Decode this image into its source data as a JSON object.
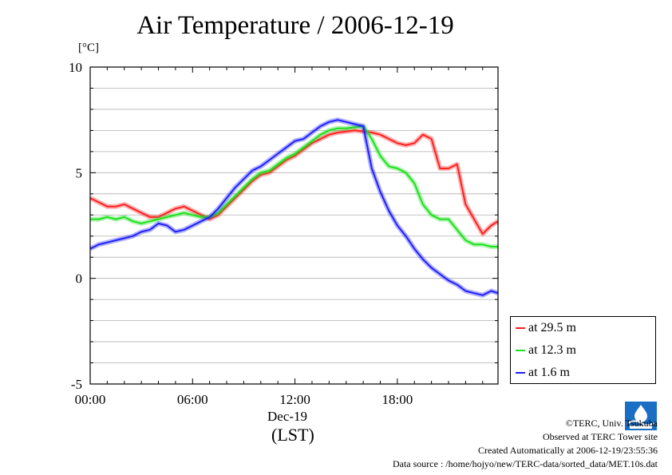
{
  "title": "Air Temperature / 2006-12-19",
  "unit_label": "[°C]",
  "date_label": "Dec-19",
  "lst_label": "(LST)",
  "legend": [
    {
      "label": "at 29.5 m",
      "color": "#ff2020"
    },
    {
      "label": "at 12.3 m",
      "color": "#20e020"
    },
    {
      "label": "at 1.6 m",
      "color": "#2020ff"
    }
  ],
  "credits": {
    "line1": "©TERC, Univ. Tsukuba",
    "line2": "Observed at TERC Tower site",
    "line3": "Created Automatically at 2006-12-19/23:55:36",
    "line4": "Data source : /home/hojyo/new/TERC-data/sorted_data/MET.10s.dat"
  },
  "logo_icon": "terc-logo-icon",
  "chart_data": {
    "type": "line",
    "title": "Air Temperature / 2006-12-19",
    "xlabel": "(LST)",
    "ylabel": "[°C]",
    "x_ticks": [
      "00:00",
      "06:00",
      "12:00",
      "18:00"
    ],
    "x_tick_values": [
      0,
      6,
      12,
      18
    ],
    "y_ticks": [
      "10",
      "5",
      "0",
      "-5"
    ],
    "y_tick_values": [
      10,
      5,
      0,
      -5
    ],
    "xlim": [
      0,
      23.9
    ],
    "ylim": [
      -5,
      10
    ],
    "grid": true,
    "legend_position": "bottom-right, outside",
    "x": [
      0,
      0.5,
      1,
      1.5,
      2,
      2.5,
      3,
      3.5,
      4,
      4.5,
      5,
      5.5,
      6,
      6.5,
      7,
      7.5,
      8,
      8.5,
      9,
      9.5,
      10,
      10.5,
      11,
      11.5,
      12,
      12.5,
      13,
      13.5,
      14,
      14.5,
      15,
      15.5,
      16,
      16.5,
      17,
      17.5,
      18,
      18.5,
      19,
      19.5,
      20,
      20.5,
      21,
      21.5,
      22,
      22.5,
      23,
      23.5,
      23.9
    ],
    "series": [
      {
        "name": "at 29.5 m",
        "color": "#ff2020",
        "values": [
          3.8,
          3.6,
          3.4,
          3.4,
          3.5,
          3.3,
          3.1,
          2.9,
          2.9,
          3.1,
          3.3,
          3.4,
          3.2,
          3.0,
          2.8,
          3.0,
          3.4,
          3.8,
          4.2,
          4.6,
          4.9,
          5.0,
          5.3,
          5.6,
          5.8,
          6.1,
          6.4,
          6.6,
          6.8,
          6.9,
          6.95,
          7.0,
          6.95,
          6.9,
          6.8,
          6.6,
          6.4,
          6.3,
          6.4,
          6.8,
          6.6,
          5.2,
          5.2,
          5.4,
          3.5,
          2.8,
          2.1,
          2.5,
          2.7
        ]
      },
      {
        "name": "at 12.3 m",
        "color": "#20e020",
        "values": [
          2.8,
          2.8,
          2.9,
          2.8,
          2.9,
          2.7,
          2.6,
          2.7,
          2.8,
          2.9,
          3.0,
          3.1,
          3.0,
          2.9,
          2.9,
          3.1,
          3.5,
          3.9,
          4.3,
          4.7,
          5.0,
          5.1,
          5.4,
          5.7,
          5.9,
          6.2,
          6.5,
          6.8,
          7.0,
          7.1,
          7.1,
          7.15,
          7.2,
          6.6,
          5.8,
          5.3,
          5.2,
          5.0,
          4.5,
          3.5,
          3.0,
          2.8,
          2.8,
          2.3,
          1.8,
          1.6,
          1.6,
          1.5,
          1.5
        ]
      },
      {
        "name": "at 1.6 m",
        "color": "#2020ff",
        "values": [
          1.4,
          1.6,
          1.7,
          1.8,
          1.9,
          2.0,
          2.2,
          2.3,
          2.6,
          2.5,
          2.2,
          2.3,
          2.5,
          2.7,
          2.9,
          3.3,
          3.8,
          4.3,
          4.7,
          5.1,
          5.3,
          5.6,
          5.9,
          6.2,
          6.5,
          6.6,
          6.9,
          7.2,
          7.4,
          7.5,
          7.4,
          7.3,
          7.2,
          5.2,
          4.1,
          3.2,
          2.5,
          2.0,
          1.4,
          0.9,
          0.5,
          0.2,
          -0.1,
          -0.3,
          -0.6,
          -0.7,
          -0.8,
          -0.6,
          -0.7
        ]
      }
    ]
  }
}
